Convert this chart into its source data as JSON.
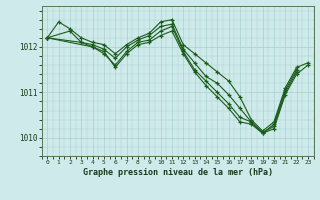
{
  "title": "Graphe pression niveau de la mer (hPa)",
  "bg_color": "#ceeaea",
  "grid_color": "#aacfcf",
  "line_color": "#1a5c1a",
  "x_labels": [
    "0",
    "1",
    "2",
    "3",
    "4",
    "5",
    "6",
    "7",
    "8",
    "9",
    "10",
    "11",
    "12",
    "13",
    "14",
    "15",
    "16",
    "17",
    "18",
    "19",
    "20",
    "21",
    "22",
    "23"
  ],
  "ylim": [
    1009.6,
    1012.9
  ],
  "yticks": [
    1010,
    1011,
    1012
  ],
  "series": [
    [
      1012.2,
      1012.55,
      1012.4,
      1012.2,
      1012.1,
      1012.05,
      1011.85,
      1012.05,
      1012.2,
      1012.3,
      1012.55,
      1012.6,
      1012.05,
      1011.85,
      1011.65,
      1011.45,
      1011.25,
      1010.9,
      1010.4,
      1010.15,
      1010.35,
      1011.1,
      1011.55,
      1011.65
    ],
    [
      1012.2,
      null,
      1012.35,
      1012.1,
      1012.05,
      1011.95,
      1011.75,
      1012.0,
      1012.15,
      1012.25,
      1012.45,
      1012.5,
      1011.95,
      1011.65,
      1011.35,
      1011.2,
      1010.95,
      1010.65,
      1010.35,
      1010.1,
      1010.3,
      1011.05,
      1011.5,
      null
    ],
    [
      1012.2,
      null,
      null,
      1012.1,
      1012.0,
      1011.85,
      1011.6,
      1011.9,
      1012.1,
      1012.15,
      1012.35,
      1012.45,
      1011.9,
      1011.5,
      1011.25,
      1011.0,
      1010.75,
      1010.45,
      1010.35,
      1010.12,
      1010.25,
      1011.0,
      1011.45,
      null
    ],
    [
      1012.2,
      null,
      null,
      null,
      1012.0,
      1011.9,
      1011.55,
      1011.85,
      1012.05,
      1012.1,
      1012.25,
      1012.35,
      1011.85,
      1011.45,
      1011.15,
      1010.9,
      1010.65,
      1010.35,
      1010.3,
      1010.1,
      1010.2,
      1010.95,
      1011.4,
      1011.6
    ]
  ]
}
